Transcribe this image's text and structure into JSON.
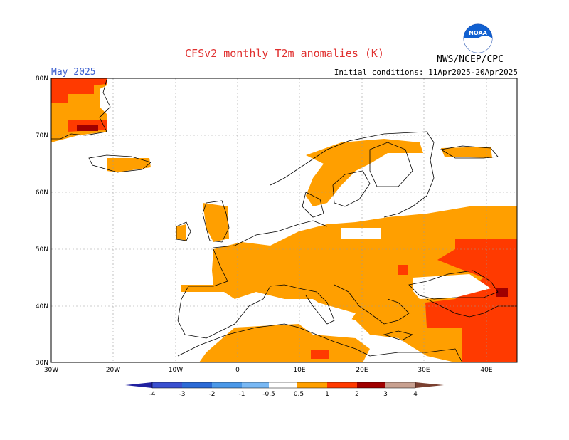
{
  "header": {
    "title": "CFSv2 monthly T2m anomalies (K)",
    "month": "May 2025",
    "initial_conditions": "Initial conditions: 11Apr2025-20Apr2025",
    "agency": "NWS/NCEP/CPC",
    "logo_text": "NOAA"
  },
  "map": {
    "lon_range": [
      -30,
      45
    ],
    "lat_range": [
      30,
      80
    ],
    "lat_labels": [
      "80N",
      "70N",
      "60N",
      "50N",
      "40N",
      "30N"
    ],
    "lon_labels": [
      "30W",
      "20W",
      "10W",
      "0",
      "10E",
      "20E",
      "30E",
      "40E"
    ]
  },
  "colorbar": {
    "labels": [
      "-4",
      "-3",
      "-2",
      "-1",
      "-0.5",
      "0.5",
      "1",
      "2",
      "3",
      "4"
    ],
    "colors": [
      "#2020a0",
      "#3a50d0",
      "#2b6ad6",
      "#4a98e8",
      "#78b8f4",
      "#ffffff",
      "#ff9f00",
      "#ff3a00",
      "#a00000",
      "#c8a090",
      "#7a4030"
    ]
  }
}
